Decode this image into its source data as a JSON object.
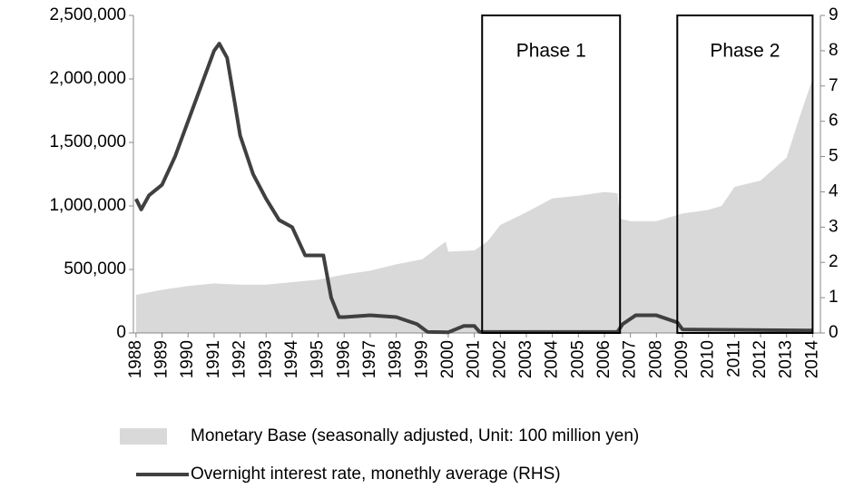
{
  "chart_data": {
    "type": "area-line",
    "xlim": [
      1987.9,
      2014.3
    ],
    "xticks": [
      1988,
      1989,
      1990,
      1991,
      1992,
      1993,
      1994,
      1995,
      1996,
      1997,
      1998,
      1999,
      2000,
      2001,
      2002,
      2003,
      2004,
      2005,
      2006,
      2007,
      2008,
      2009,
      2010,
      2011,
      2012,
      2013,
      2014
    ],
    "ylim": [
      0,
      2500000
    ],
    "yticks": [
      {
        "value": 0,
        "label": "0"
      },
      {
        "value": 500000,
        "label": "500,000"
      },
      {
        "value": 1000000,
        "label": "1,000,000"
      },
      {
        "value": 1500000,
        "label": "1,500,000"
      },
      {
        "value": 2000000,
        "label": "2,000,000"
      },
      {
        "value": 2500000,
        "label": "2,500,000"
      }
    ],
    "y2lim": [
      0,
      9
    ],
    "y2ticks": [
      0,
      1,
      2,
      3,
      4,
      5,
      6,
      7,
      8,
      9
    ],
    "series": [
      {
        "name": "Monetary Base (seasonally adjusted, Unit: 100 million yen)",
        "color": "#d9d9d9",
        "kind": "area",
        "x": [
          1988,
          1988.5,
          1989,
          1990,
          1991,
          1992,
          1993,
          1994,
          1995,
          1996,
          1997,
          1998,
          1999,
          1999.9,
          2000,
          2001,
          2001.5,
          2002,
          2003,
          2004,
          2005,
          2006,
          2006.5,
          2006.6,
          2007,
          2008,
          2009,
          2010,
          2010.5,
          2011,
          2012,
          2013,
          2013.5,
          2014
        ],
        "values": [
          300000,
          320000,
          340000,
          370000,
          390000,
          380000,
          380000,
          400000,
          420000,
          460000,
          490000,
          540000,
          580000,
          720000,
          640000,
          650000,
          720000,
          850000,
          950000,
          1060000,
          1080000,
          1110000,
          1100000,
          900000,
          880000,
          880000,
          940000,
          970000,
          1000000,
          1150000,
          1200000,
          1380000,
          1700000,
          2000000
        ]
      },
      {
        "name": "Overnight interest rate, monethly average (RHS)",
        "color": "#404040",
        "kind": "line",
        "axis": "y2",
        "x": [
          1988,
          1988.2,
          1988.5,
          1989,
          1989.5,
          1990,
          1990.5,
          1991,
          1991.2,
          1991.5,
          1991.8,
          1992,
          1992.5,
          1993,
          1993.5,
          1994,
          1994.5,
          1995,
          1995.2,
          1995.5,
          1995.8,
          1996,
          1997,
          1998,
          1998.8,
          1999.2,
          2000,
          2000.6,
          2001,
          2001.2,
          2006.5,
          2006.7,
          2007.2,
          2008,
          2008.8,
          2009,
          2014
        ],
        "values": [
          3.8,
          3.5,
          3.9,
          4.2,
          5.0,
          6.0,
          7.0,
          8.0,
          8.2,
          7.8,
          6.5,
          5.6,
          4.5,
          3.8,
          3.2,
          3.0,
          2.2,
          2.2,
          2.2,
          1.0,
          0.45,
          0.45,
          0.5,
          0.45,
          0.25,
          0.03,
          0.02,
          0.2,
          0.2,
          0.03,
          0.03,
          0.25,
          0.5,
          0.5,
          0.3,
          0.1,
          0.07
        ]
      }
    ],
    "annotations": [
      {
        "text": "Phase 1",
        "x": [
          2001.3,
          2006.6
        ]
      },
      {
        "text": "Phase 2",
        "x": [
          2008.8,
          2014.0
        ]
      }
    ]
  }
}
